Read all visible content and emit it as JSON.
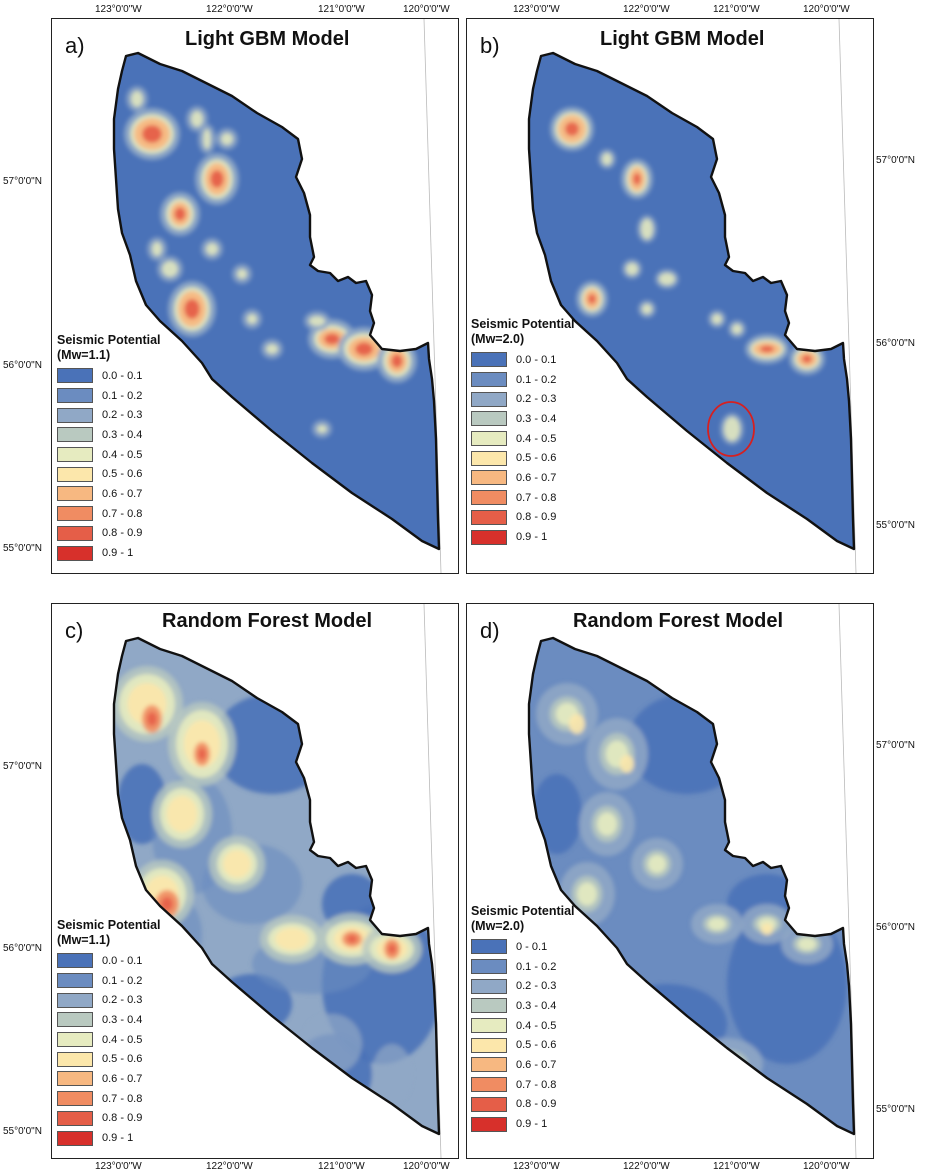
{
  "panels": [
    {
      "id": "a",
      "label": "a)",
      "title": "Light GBM Model",
      "legend_title": "Seismic Potential",
      "legend_subtitle": "(Mw=1.1)",
      "legend_items": [
        "0.0 - 0.1",
        "0.1 - 0.2",
        "0.2 - 0.3",
        "0.3 - 0.4",
        "0.4 - 0.5",
        "0.5 - 0.6",
        "0.6 - 0.7",
        "0.7 - 0.8",
        "0.8 - 0.9",
        "0.9 - 1"
      ]
    },
    {
      "id": "b",
      "label": "b)",
      "title": "Light GBM Model",
      "legend_title": "Seismic Potential",
      "legend_subtitle": "(Mw=2.0)",
      "legend_items": [
        "0.0 - 0.1",
        "0.1 - 0.2",
        "0.2 - 0.3",
        "0.3 - 0.4",
        "0.4 - 0.5",
        "0.5 - 0.6",
        "0.6 - 0.7",
        "0.7 - 0.8",
        "0.8 - 0.9",
        "0.9 - 1"
      ]
    },
    {
      "id": "c",
      "label": "c)",
      "title": "Random Forest Model",
      "legend_title": "Seismic Potential",
      "legend_subtitle": "(Mw=1.1)",
      "legend_items": [
        "0.0 - 0.1",
        "0.1 - 0.2",
        "0.2 - 0.3",
        "0.3 - 0.4",
        "0.4 - 0.5",
        "0.5 - 0.6",
        "0.6 - 0.7",
        "0.7 - 0.8",
        "0.8 - 0.9",
        "0.9 - 1"
      ]
    },
    {
      "id": "d",
      "label": "d)",
      "title": "Random Forest Model",
      "legend_title": "Seismic Potential",
      "legend_subtitle": "(Mw=2.0)",
      "legend_items": [
        "0 - 0.1",
        "0.1 - 0.2",
        "0.2 - 0.3",
        "0.3 - 0.4",
        "0.4 - 0.5",
        "0.5 - 0.6",
        "0.6 - 0.7",
        "0.7 - 0.8",
        "0.8 - 0.9",
        "0.9 - 1"
      ]
    }
  ],
  "legend_colors": [
    "#4a72b8",
    "#6b8cc0",
    "#90a8c6",
    "#b9c9c0",
    "#e6ebc0",
    "#fce7ab",
    "#f7b881",
    "#f08c62",
    "#e55e48",
    "#d7302b"
  ],
  "coords": {
    "lon_labels": [
      "123°0'0\"W",
      "122°0'0\"W",
      "121°0'0\"W",
      "120°0'0\"W"
    ],
    "lat_labels": [
      "57°0'0\"N",
      "56°0'0\"N",
      "55°0'0\"N"
    ]
  },
  "annotation": {
    "marker": "red-circle",
    "color": "#d62020"
  }
}
